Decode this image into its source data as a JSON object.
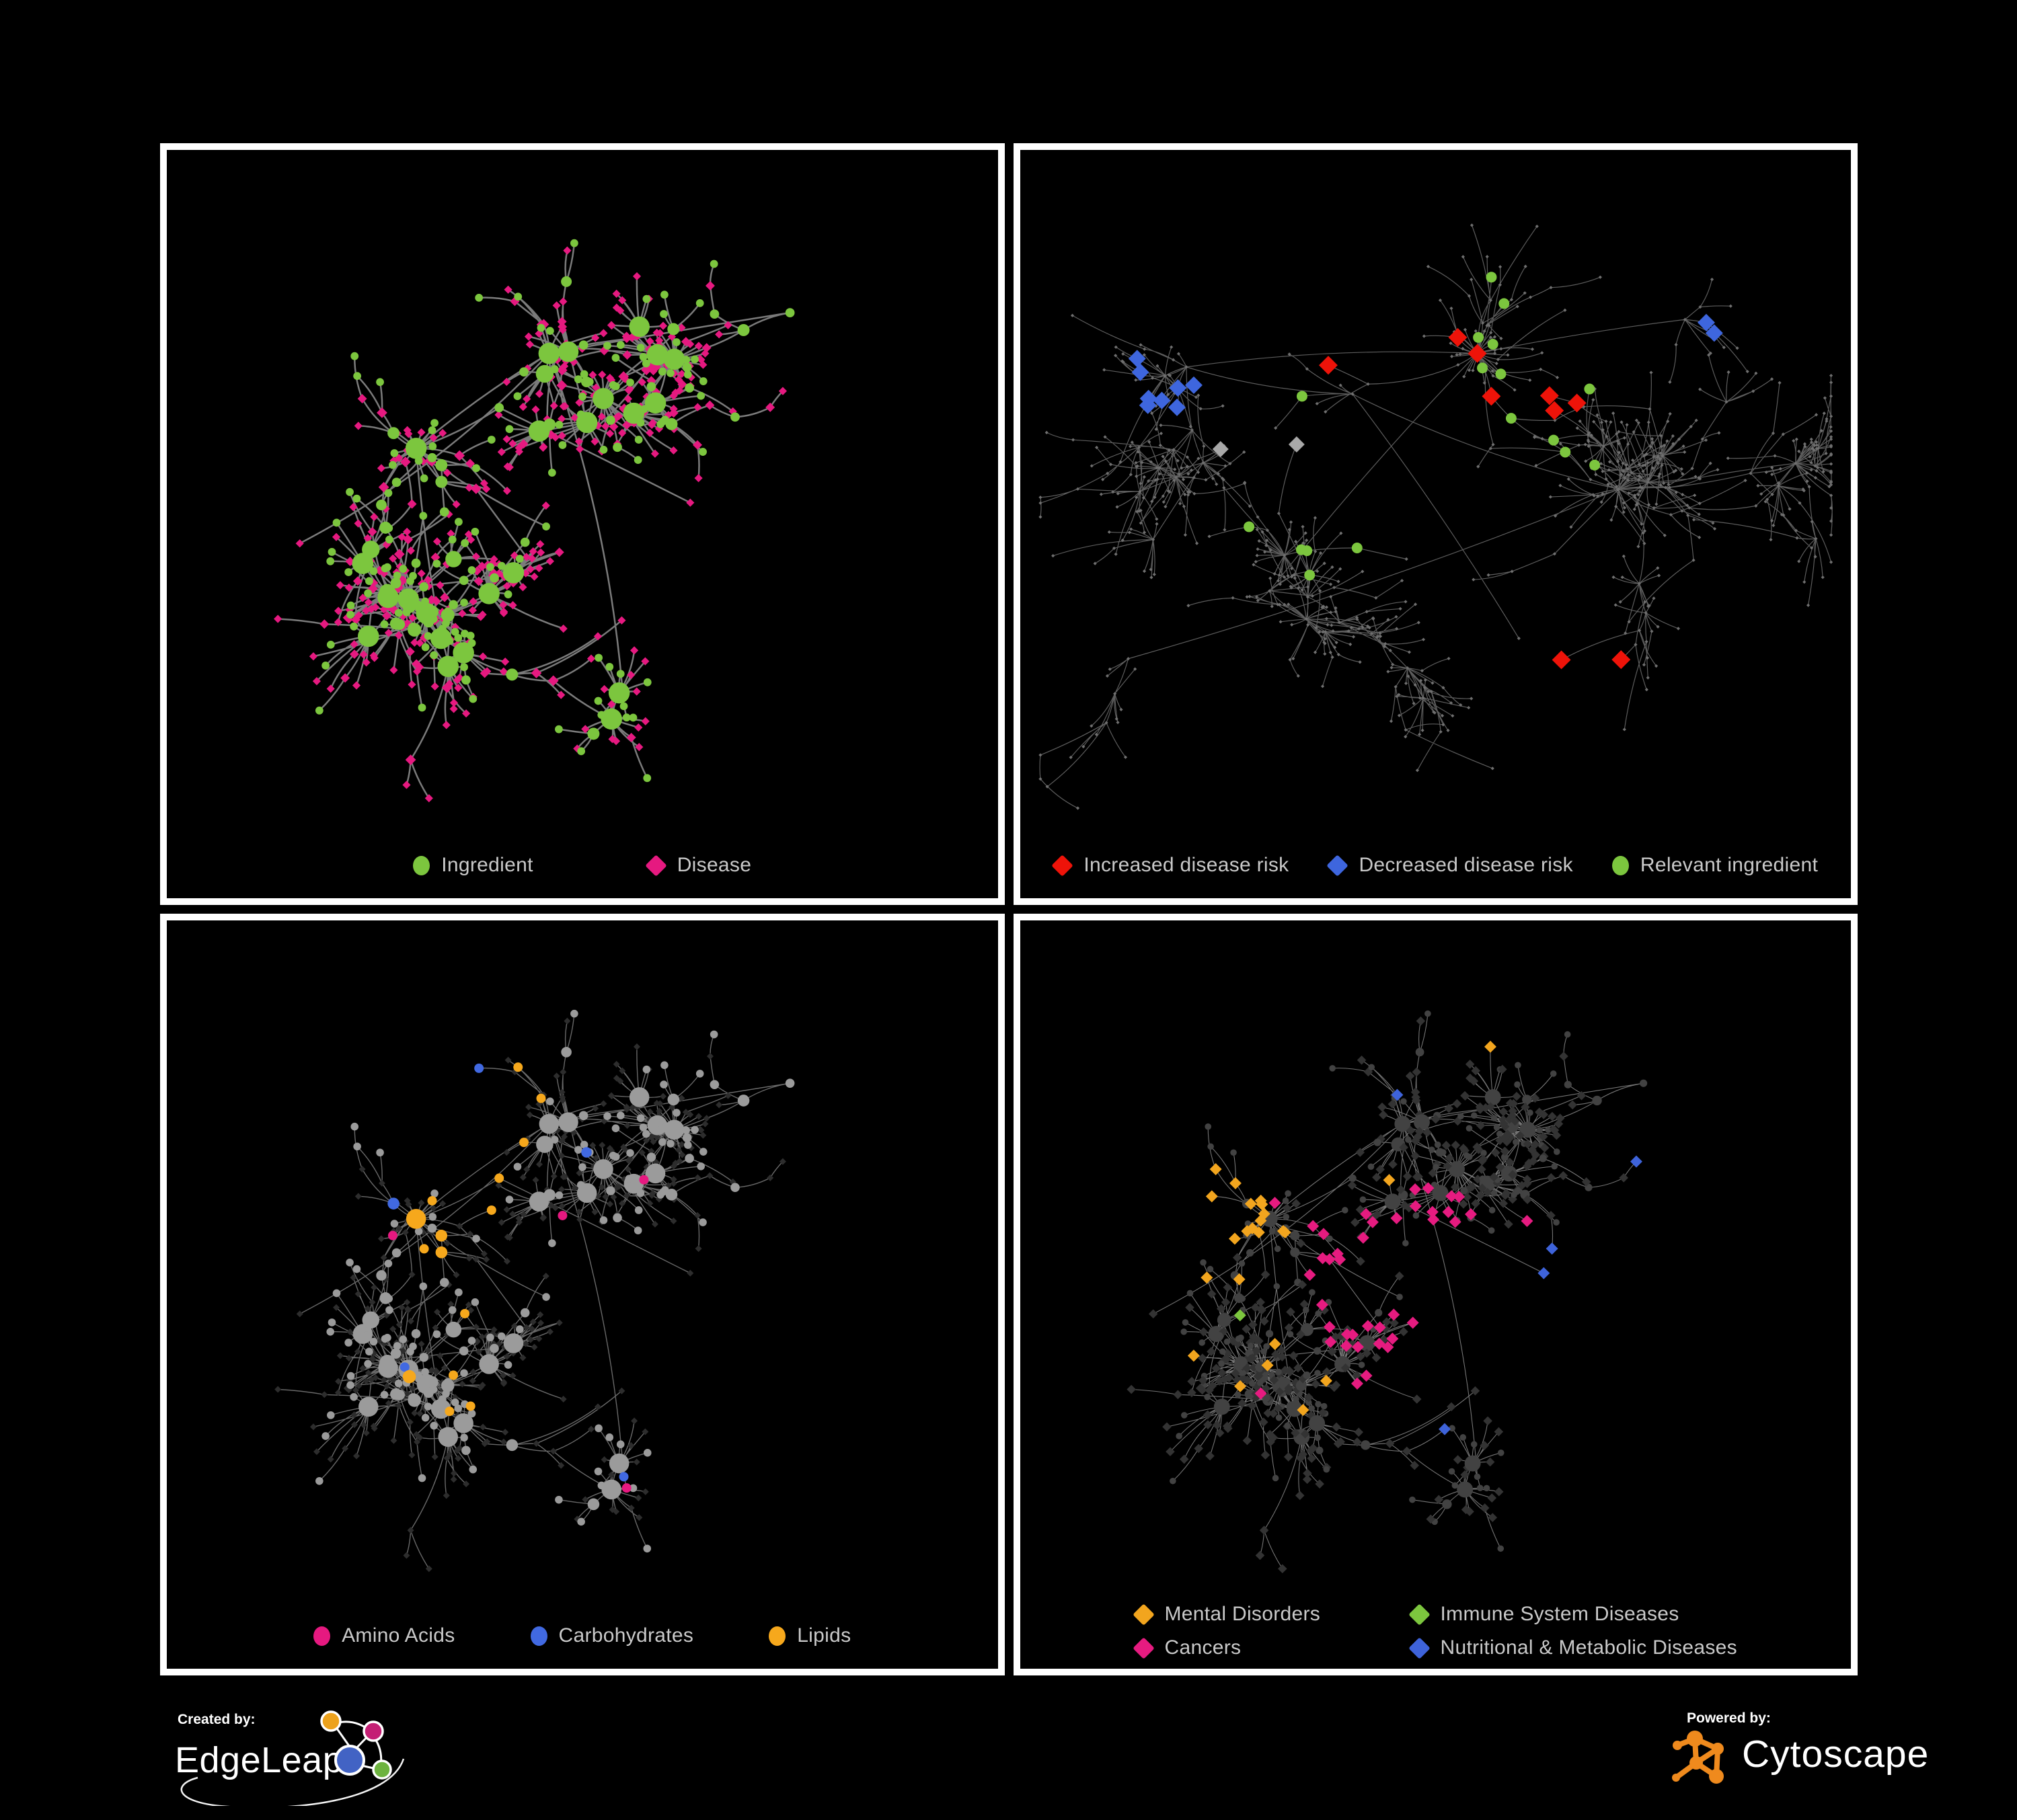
{
  "figure": {
    "background": "#000000",
    "panel_border_color": "#ffffff",
    "legend_text_color": "#c9c9c9"
  },
  "panels": [
    {
      "id": "ingredient-disease",
      "position": "top-left",
      "legend": [
        {
          "shape": "circle",
          "color": "#7cc63e",
          "label": "Ingredient"
        },
        {
          "shape": "diamond",
          "color": "#e61980",
          "label": "Disease"
        }
      ]
    },
    {
      "id": "disease-risk",
      "position": "top-right",
      "legend": [
        {
          "shape": "diamond",
          "color": "#ee1309",
          "label": "Increased disease risk"
        },
        {
          "shape": "diamond",
          "color": "#3e66de",
          "label": "Decreased disease risk"
        },
        {
          "shape": "circle",
          "color": "#7cc63e",
          "label": "Relevant ingredient"
        }
      ]
    },
    {
      "id": "compound-classes",
      "position": "bottom-left",
      "legend": [
        {
          "shape": "circle",
          "color": "#e61980",
          "label": "Amino Acids"
        },
        {
          "shape": "circle",
          "color": "#4169e1",
          "label": "Carbohydrates"
        },
        {
          "shape": "circle",
          "color": "#f6a81c",
          "label": "Lipids"
        }
      ]
    },
    {
      "id": "disease-classes",
      "position": "bottom-right",
      "legend_rows": [
        [
          {
            "shape": "diamond",
            "color": "#f2a51e",
            "label": "Mental Disorders"
          },
          {
            "shape": "diamond",
            "color": "#7cc63e",
            "label": "Immune System Diseases"
          }
        ],
        [
          {
            "shape": "diamond",
            "color": "#e61b80",
            "label": "Cancers"
          },
          {
            "shape": "diamond",
            "color": "#3e63da",
            "label": "Nutritional & Metabolic Diseases"
          }
        ]
      ]
    }
  ],
  "footer": {
    "created_by_label": "Created by:",
    "created_by_name": "EdgeLeap",
    "powered_by_label": "Powered by:",
    "powered_by_name": "Cytoscape",
    "edgeleap_logo_colors": {
      "blue": "#4263c4",
      "orange": "#eda21c",
      "magenta": "#c41f74",
      "green": "#6db33f",
      "outline": "#ffffff"
    },
    "cytoscape_logo_color": "#ef8a1d"
  },
  "network_style": {
    "graphs": {
      "A": {
        "seed": 7,
        "nodes": 620,
        "burst_p": 0.1,
        "runner_p": 0.05,
        "roots": [
          [
            0.3,
            0.44
          ],
          [
            0.46,
            0.3
          ],
          [
            0.4,
            0.38
          ],
          [
            0.63,
            0.52
          ],
          [
            0.33,
            0.72
          ],
          [
            0.75,
            0.24
          ],
          [
            0.16,
            0.58
          ],
          [
            0.55,
            0.82
          ]
        ]
      },
      "B": {
        "seed": 13,
        "nodes": 780,
        "burst_p": 0.09,
        "runner_p": 0.09,
        "roots": [
          [
            0.4,
            0.36
          ],
          [
            0.2,
            0.32
          ],
          [
            0.55,
            0.3
          ],
          [
            0.72,
            0.5
          ],
          [
            0.3,
            0.65
          ],
          [
            0.8,
            0.25
          ],
          [
            0.6,
            0.72
          ],
          [
            0.13,
            0.75
          ]
        ]
      }
    },
    "panel_render": {
      "ingredient-disease": {
        "graph": "A",
        "edge_color": "#7b7b7b",
        "edge_width": 2.5,
        "ingredient_color": "#7cc63e",
        "disease_color": "#e61980",
        "highlight_seed": 101
      },
      "disease-risk": {
        "graph": "B",
        "edge_color": "#5d5d5d",
        "edge_width": 1.2,
        "base_color": "#6f6f6f",
        "increased_color": "#ee1309",
        "decreased_color": "#3e66de",
        "neutral_color": "#a8a8a8",
        "ingredient_color": "#7cc63e",
        "highlight_seed": 201
      },
      "compound-classes": {
        "graph": "A",
        "edge_color": "#696969",
        "edge_width": 1.4,
        "base_circle_color": "#9b9b9b",
        "base_diamond_color": "#2d2d2d",
        "amino_color": "#e61980",
        "carbs_color": "#4169e1",
        "lipids_color": "#f6a81c",
        "highlight_seed": 301
      },
      "disease-classes": {
        "graph": "A",
        "edge_color": "#747474",
        "edge_width": 1.1,
        "base_diamond_color": "#333333",
        "base_circle_color": "#424242",
        "mental_color": "#f2a51e",
        "immune_color": "#7cc63e",
        "cancer_color": "#e61b80",
        "nutritional_color": "#3e63da",
        "highlight_seed": 401
      }
    }
  }
}
